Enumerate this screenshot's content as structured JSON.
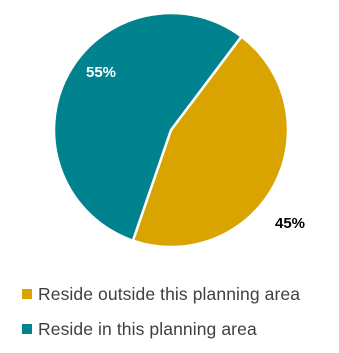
{
  "chart_data": {
    "type": "pie",
    "title": "",
    "slices": [
      {
        "name": "Reside outside this planning area",
        "value": 45,
        "label": "45%",
        "color": "#d9a300"
      },
      {
        "name": "Reside in this planning area",
        "value": 55,
        "label": "55%",
        "color": "#00838f"
      }
    ],
    "start_angle_deg": 37,
    "direction": "clockwise",
    "label_colors": {
      "on_slice": "#ffffff",
      "outside": "#000000"
    },
    "legend_position": "bottom"
  }
}
